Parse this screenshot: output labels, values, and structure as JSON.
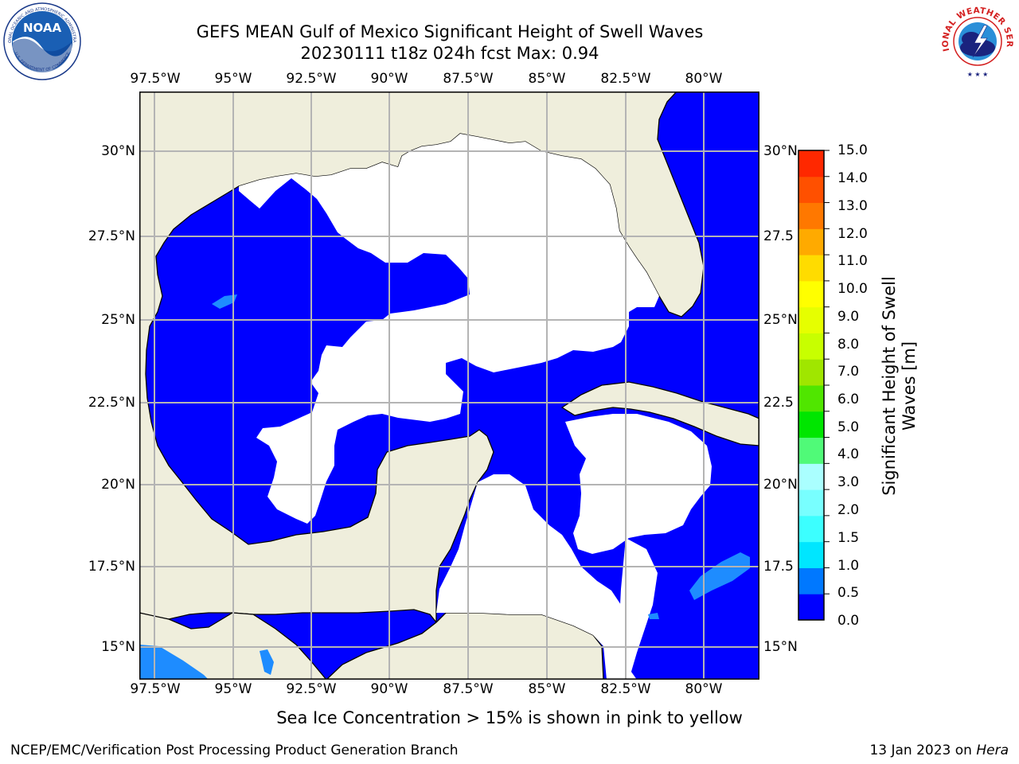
{
  "title_line1": "GEFS MEAN Gulf of Mexico Significant Height of Swell Waves",
  "title_line2": "20230111 t18z 024h fcst   Max: 0.94",
  "lon_labels": [
    "97.5°W",
    "95°W",
    "92.5°W",
    "90°W",
    "87.5°W",
    "85°W",
    "82.5°W",
    "80°W"
  ],
  "lat_labels": [
    "30°N",
    "27.5°N",
    "25°N",
    "22.5°N",
    "20°N",
    "17.5°N",
    "15°N"
  ],
  "lat_labels_right": [
    "30°N",
    "27.5",
    "25°N",
    "22.5",
    "20°N",
    "17.5",
    "15°N"
  ],
  "colorbar": {
    "label_line1": "Significant Height of Swell",
    "label_line2": "Waves [m]",
    "ticks": [
      "15.0",
      "14.0",
      "13.0",
      "12.0",
      "11.0",
      "10.0",
      "9.0",
      "8.0",
      "7.0",
      "6.0",
      "5.0",
      "4.0",
      "3.0",
      "2.0",
      "1.5",
      "1.0",
      "0.5",
      "0.0"
    ],
    "colors_bottom_to_top": [
      "#0000ff",
      "#0078ff",
      "#00e6ff",
      "#3cffff",
      "#78ffff",
      "#aaffff",
      "#50fa78",
      "#00e600",
      "#50e600",
      "#a0e600",
      "#c8ff00",
      "#e6ff00",
      "#ffff00",
      "#ffdc00",
      "#ffaa00",
      "#ff7800",
      "#ff5000",
      "#ff2800",
      "#ff0000"
    ]
  },
  "colors": {
    "land": "#efeedc",
    "low_swell": "#0000ff",
    "mid_swell": "#1e8cff",
    "open": "#ffffff",
    "grid": "#b4b4b4"
  },
  "sea_ice_note": "Sea Ice Concentration > 15% is shown in pink to yellow",
  "footer_left": "NCEP/EMC/Verification Post Processing Product Generation Branch",
  "footer_right_date": "13 Jan 2023 on ",
  "footer_right_host": "Hera",
  "logo_left": "NOAA",
  "logo_left_ring_top": "NATIONAL OCEANIC AND ATMOSPHERIC ADMINISTRATION",
  "logo_left_ring_bottom": "U.S. DEPARTMENT OF COMMERCE",
  "logo_right_ring": "NATIONAL WEATHER SERVICE"
}
